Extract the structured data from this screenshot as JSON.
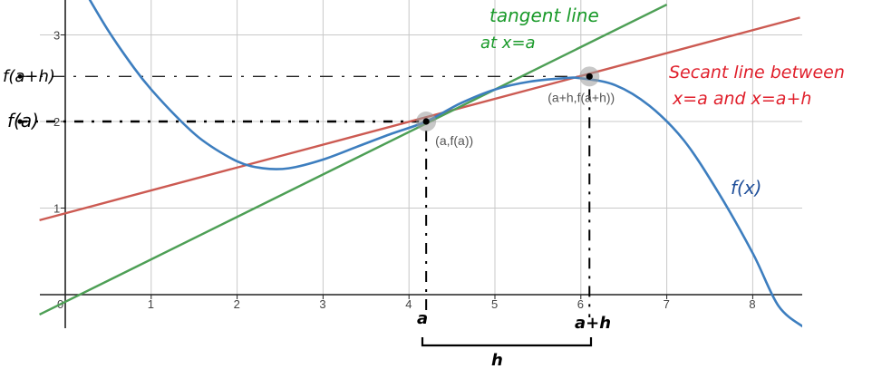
{
  "chart_data": {
    "type": "line",
    "xlim": [
      -0.28,
      8.55
    ],
    "ylim": [
      -0.42,
      3.35
    ],
    "grid": true,
    "x_ticks": [
      "0",
      "1",
      "2",
      "3",
      "4",
      "5",
      "6",
      "7",
      "8"
    ],
    "y_ticks": [
      "1",
      "2",
      "3"
    ],
    "curve": {
      "name": "f(x)",
      "x": [
        0.2,
        0.5,
        0.8,
        1.0,
        1.3,
        1.6,
        2.0,
        2.3,
        2.6,
        3.0,
        3.4,
        3.8,
        4.2,
        4.6,
        5.0,
        5.4,
        5.8,
        6.0,
        6.4,
        6.8,
        7.2,
        7.6,
        8.0,
        8.3,
        8.6
      ],
      "y": [
        3.55,
        3.05,
        2.62,
        2.37,
        2.05,
        1.78,
        1.54,
        1.46,
        1.46,
        1.56,
        1.71,
        1.86,
        2.0,
        2.21,
        2.37,
        2.46,
        2.5,
        2.5,
        2.42,
        2.18,
        1.78,
        1.18,
        0.48,
        -0.13,
        -0.38
      ]
    },
    "tangent_line": {
      "x": [
        -0.3,
        7.0
      ],
      "y": [
        -0.23,
        3.35
      ]
    },
    "secant_line": {
      "x": [
        -0.3,
        8.55
      ],
      "y": [
        0.86,
        3.2
      ]
    },
    "points": [
      {
        "label": "(a,f(a))",
        "x": 4.2,
        "y": 2.0
      },
      {
        "label": "(a+h,f(a+h))",
        "x": 6.1,
        "y": 2.52
      }
    ],
    "colors": {
      "curve": "#3d7ebf",
      "tangent": "#4d9f55",
      "secant": "#cc5a52",
      "grid": "#c8c8c8",
      "axis": "#222222"
    }
  },
  "annotations": {
    "tangent_line_1": "tangent line",
    "tangent_line_2": "at x=a",
    "secant_line_1": "Secant line between",
    "secant_line_2": "x=a and x=a+h",
    "f_label": "f(x)",
    "fa_label": "f(a)",
    "fah_label": "f(a+h)",
    "a_label": "a",
    "ah_label": "a+h",
    "h_label": "h"
  },
  "annotation_colors": {
    "green": "#1a9a2a",
    "red": "#e0202c",
    "blue": "#1f4f9a",
    "black": "#000000"
  }
}
